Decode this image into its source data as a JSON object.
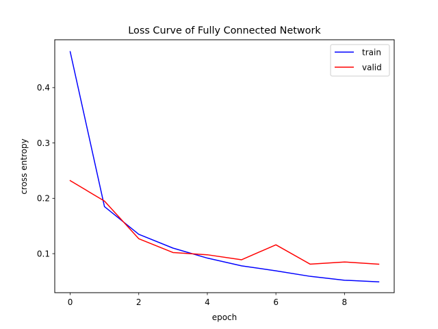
{
  "chart_data": {
    "type": "line",
    "title": "Loss Curve of Fully Connected Network",
    "xlabel": "epoch",
    "ylabel": "cross entropy",
    "x": [
      0,
      1,
      2,
      3,
      4,
      5,
      6,
      7,
      8,
      9
    ],
    "xlim": [
      -0.45,
      9.45
    ],
    "ylim": [
      0.0295,
      0.4865
    ],
    "xticks": [
      0,
      2,
      4,
      6,
      8
    ],
    "yticks": [
      0.1,
      0.2,
      0.3,
      0.4
    ],
    "xtick_labels": [
      "0",
      "2",
      "4",
      "6",
      "8"
    ],
    "ytick_labels": [
      "0.1",
      "0.2",
      "0.3",
      "0.4"
    ],
    "grid": false,
    "legend_position": "top-right",
    "series": [
      {
        "name": "train",
        "color": "#0000ff",
        "values": [
          0.465,
          0.185,
          0.135,
          0.11,
          0.092,
          0.078,
          0.069,
          0.059,
          0.052,
          0.049
        ]
      },
      {
        "name": "valid",
        "color": "#ff0000",
        "values": [
          0.232,
          0.195,
          0.127,
          0.102,
          0.098,
          0.089,
          0.116,
          0.081,
          0.085,
          0.081
        ]
      }
    ]
  }
}
